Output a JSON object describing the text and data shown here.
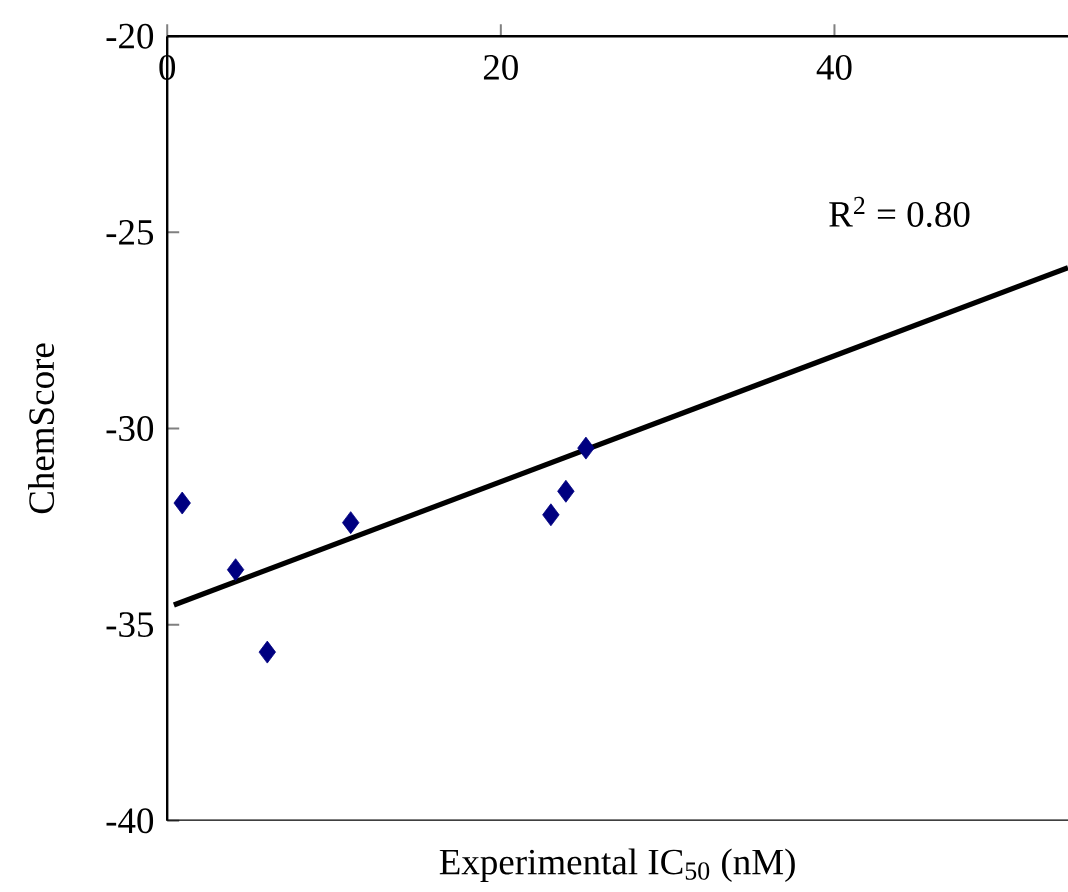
{
  "chart_data": {
    "type": "scatter",
    "xlabel": "Experimental IC$_{50}$ (nM)",
    "ylabel": "ChemScore",
    "xlim": [
      0,
      54
    ],
    "ylim": [
      -40,
      -20
    ],
    "xticks": [
      0,
      20,
      40
    ],
    "yticks": [
      -40,
      -35,
      -30,
      -25,
      -20
    ],
    "marker": "diamond",
    "grid": false,
    "annotations": [
      "R$^{2}$ = 0.80"
    ],
    "series": [
      {
        "color": "#000080",
        "x": [
          0.9,
          4.1,
          6.0,
          11.0,
          23.0,
          23.9,
          25.1
        ],
        "values": [
          -31.9,
          -33.6,
          -35.7,
          -32.4,
          -32.2,
          -31.6,
          -30.5
        ]
      },
      {
        "type": "line",
        "color": "#000000",
        "marker": "none",
        "x": [
          0.4,
          54
        ],
        "values": [
          -34.5,
          -25.9
        ]
      }
    ]
  }
}
